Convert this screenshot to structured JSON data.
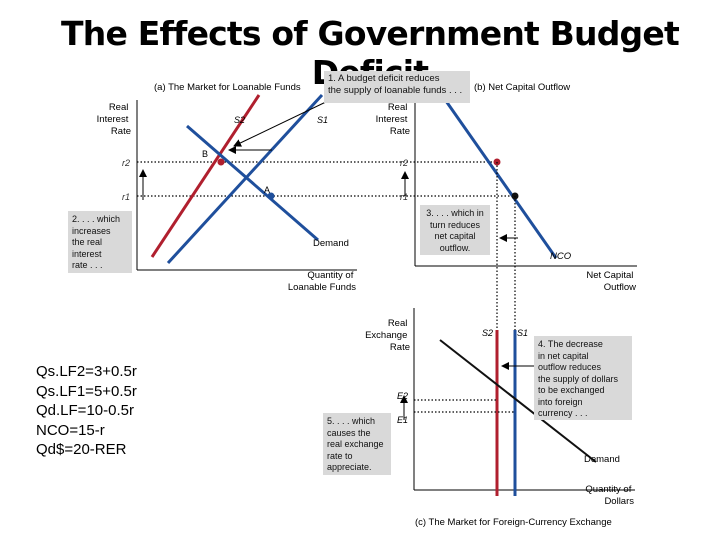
{
  "title": "The Effects of Government Budget Deficit",
  "panel_a": {
    "heading": "(a) The Market for Loanable Funds",
    "y_axis_label": [
      "Real",
      "Interest",
      "Rate"
    ],
    "x_axis_label": [
      "Quantity of",
      "Loanable Funds"
    ],
    "supply_labels": [
      "S2",
      "S1"
    ],
    "demand_label": "Demand",
    "point_labels": [
      "B",
      "A"
    ],
    "tick_labels": [
      "r2",
      "r1"
    ]
  },
  "panel_b": {
    "heading": "(b) Net Capital Outflow",
    "y_axis_label": [
      "Real",
      "Interest",
      "Rate"
    ],
    "x_axis_label": [
      "Net Capital",
      "Outflow"
    ],
    "curve_label": "NCO",
    "tick_labels": [
      "r2",
      "r1"
    ]
  },
  "panel_c": {
    "heading": "(c) The Market for Foreign-Currency Exchange",
    "y_axis_label": [
      "Real",
      "Exchange",
      "Rate"
    ],
    "x_axis_label": [
      "Quantity of",
      "Dollars"
    ],
    "supply_labels": [
      "S2",
      "S1"
    ],
    "demand_label": "Demand",
    "tick_labels": [
      "E2",
      "E1"
    ]
  },
  "annotations": {
    "note1": [
      "1. A budget deficit reduces",
      "the supply of loanable funds . . ."
    ],
    "note2": [
      "2. . . . which",
      "increases",
      "the real",
      "interest",
      "rate . . ."
    ],
    "note3": [
      "3. . . . which in",
      "turn reduces",
      "net capital",
      "outflow."
    ],
    "note4": [
      "4. The decrease",
      "in net capital",
      "outflow reduces",
      "the supply of dollars",
      "to be exchanged",
      "into foreign",
      "currency . . ."
    ],
    "note5": [
      "5. . . . which",
      "causes the",
      "real exchange",
      "rate to",
      "appreciate."
    ]
  },
  "equations": [
    "Qs.LF2=3+0.5r",
    "Qs.LF1=5+0.5r",
    "Qd.LF=10-0.5r",
    "NCO=15-r",
    "Qd$=20-RER"
  ],
  "colors": {
    "red": "#b01f2e",
    "blue": "#1f4f9c",
    "axis": "#000000",
    "dotted": "#000000",
    "note_bg": "#d9d9d9"
  }
}
